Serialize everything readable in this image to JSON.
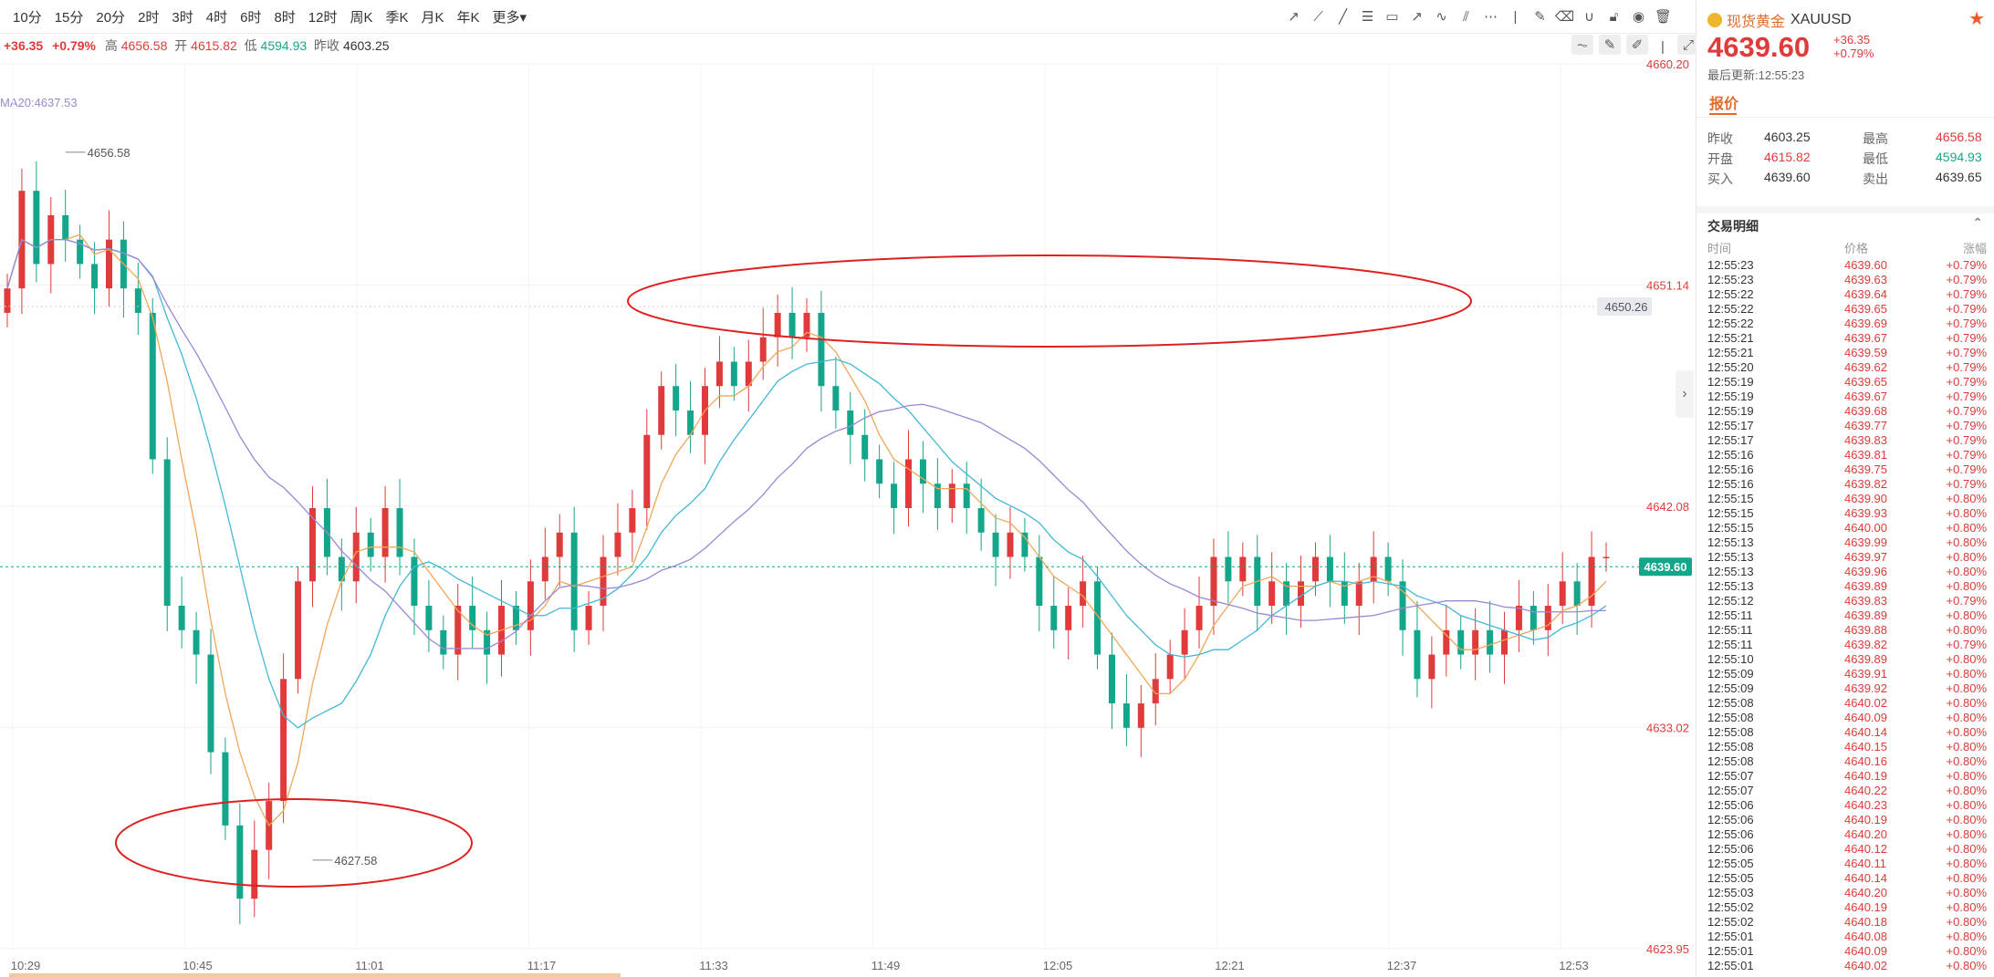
{
  "toolbar": {
    "periods": [
      "10分",
      "15分",
      "20分",
      "2时",
      "3时",
      "4时",
      "6时",
      "8时",
      "12时",
      "周K",
      "季K",
      "月K",
      "年K",
      "更多▾"
    ]
  },
  "infobar": {
    "change": "+36.35",
    "change_pct": "+0.79%",
    "high_label": "高",
    "high": "4656.58",
    "open_label": "开",
    "open": "4615.82",
    "low_label": "低",
    "low": "4594.93",
    "prev_label": "昨收",
    "prev": "4603.25"
  },
  "ma_label": "MA20:4637.53",
  "chart_data": {
    "type": "candlestick",
    "ylim": [
      4623.95,
      4660.2
    ],
    "ytick_labels": [
      "4660.20",
      "4651.14",
      "4642.08",
      "4633.02",
      "4623.95"
    ],
    "ytick_values": [
      4660.2,
      4651.14,
      4642.08,
      4633.02,
      4623.95
    ],
    "xtick_labels": [
      "10:29",
      "10:45",
      "11:01",
      "11:17",
      "11:33",
      "11:49",
      "12:05",
      "12:21",
      "12:37",
      "12:53"
    ],
    "current_price": "4639.60",
    "marker_price": "4650.26",
    "annotations": [
      {
        "text": "4656.58",
        "value": 4656.58
      },
      {
        "text": "4627.58",
        "value": 4627.58
      }
    ],
    "close": [
      4651,
      4655,
      4652,
      4654,
      4653,
      4652,
      4651,
      4653,
      4651,
      4650,
      4644,
      4638,
      4637,
      4636,
      4632,
      4629,
      4626,
      4628,
      4630,
      4635,
      4639,
      4642,
      4640,
      4639,
      4641,
      4640,
      4642,
      4640,
      4638,
      4637,
      4636,
      4638,
      4637,
      4636,
      4638,
      4637,
      4639,
      4640,
      4641,
      4637,
      4638,
      4640,
      4641,
      4642,
      4645,
      4647,
      4646,
      4645,
      4647,
      4648,
      4647,
      4648,
      4649,
      4650,
      4649,
      4650,
      4647,
      4646,
      4645,
      4644,
      4643,
      4642,
      4644,
      4643,
      4642,
      4643,
      4642,
      4641,
      4640,
      4641,
      4640,
      4638,
      4637,
      4638,
      4639,
      4636,
      4634,
      4633,
      4634,
      4635,
      4636,
      4637,
      4638,
      4640,
      4639,
      4640,
      4638,
      4639,
      4638,
      4639,
      4640,
      4639,
      4638,
      4639,
      4640,
      4639,
      4637,
      4635,
      4636,
      4637,
      4636,
      4637,
      4636,
      4637,
      4638,
      4637,
      4638,
      4639,
      4638,
      4640,
      4640
    ]
  },
  "right_panel": {
    "name": "现货黄金",
    "symbol": "XAUUSD",
    "price": "4639.60",
    "change": "+36.35",
    "change_pct": "+0.79%",
    "updated": "最后更新:12:55:23",
    "tab": "报价",
    "quote": [
      {
        "l1": "昨收",
        "v1": "4603.25",
        "c1": "#333",
        "l2": "最高",
        "v2": "4656.58",
        "c2": "#e03a3a"
      },
      {
        "l1": "开盘",
        "v1": "4615.82",
        "c1": "#e03a3a",
        "l2": "最低",
        "v2": "4594.93",
        "c2": "#14a68a"
      },
      {
        "l1": "买入",
        "v1": "4639.60",
        "c1": "#333",
        "l2": "卖出",
        "v2": "4639.65",
        "c2": "#333"
      }
    ],
    "detail_title": "交易明细",
    "headers": [
      "时间",
      "价格",
      "涨幅"
    ],
    "trades": [
      [
        "12:55:23",
        "4639.60",
        "+0.79%"
      ],
      [
        "12:55:23",
        "4639.63",
        "+0.79%"
      ],
      [
        "12:55:22",
        "4639.64",
        "+0.79%"
      ],
      [
        "12:55:22",
        "4639.65",
        "+0.79%"
      ],
      [
        "12:55:22",
        "4639.69",
        "+0.79%"
      ],
      [
        "12:55:21",
        "4639.67",
        "+0.79%"
      ],
      [
        "12:55:21",
        "4639.59",
        "+0.79%"
      ],
      [
        "12:55:20",
        "4639.62",
        "+0.79%"
      ],
      [
        "12:55:19",
        "4639.65",
        "+0.79%"
      ],
      [
        "12:55:19",
        "4639.67",
        "+0.79%"
      ],
      [
        "12:55:19",
        "4639.68",
        "+0.79%"
      ],
      [
        "12:55:17",
        "4639.77",
        "+0.79%"
      ],
      [
        "12:55:17",
        "4639.83",
        "+0.79%"
      ],
      [
        "12:55:16",
        "4639.81",
        "+0.79%"
      ],
      [
        "12:55:16",
        "4639.75",
        "+0.79%"
      ],
      [
        "12:55:16",
        "4639.82",
        "+0.79%"
      ],
      [
        "12:55:15",
        "4639.90",
        "+0.80%"
      ],
      [
        "12:55:15",
        "4639.93",
        "+0.80%"
      ],
      [
        "12:55:15",
        "4640.00",
        "+0.80%"
      ],
      [
        "12:55:13",
        "4639.99",
        "+0.80%"
      ],
      [
        "12:55:13",
        "4639.97",
        "+0.80%"
      ],
      [
        "12:55:13",
        "4639.96",
        "+0.80%"
      ],
      [
        "12:55:13",
        "4639.89",
        "+0.80%"
      ],
      [
        "12:55:12",
        "4639.83",
        "+0.79%"
      ],
      [
        "12:55:11",
        "4639.89",
        "+0.80%"
      ],
      [
        "12:55:11",
        "4639.88",
        "+0.80%"
      ],
      [
        "12:55:11",
        "4639.82",
        "+0.79%"
      ],
      [
        "12:55:10",
        "4639.89",
        "+0.80%"
      ],
      [
        "12:55:09",
        "4639.91",
        "+0.80%"
      ],
      [
        "12:55:09",
        "4639.92",
        "+0.80%"
      ],
      [
        "12:55:08",
        "4640.02",
        "+0.80%"
      ],
      [
        "12:55:08",
        "4640.09",
        "+0.80%"
      ],
      [
        "12:55:08",
        "4640.14",
        "+0.80%"
      ],
      [
        "12:55:08",
        "4640.15",
        "+0.80%"
      ],
      [
        "12:55:08",
        "4640.16",
        "+0.80%"
      ],
      [
        "12:55:07",
        "4640.19",
        "+0.80%"
      ],
      [
        "12:55:07",
        "4640.22",
        "+0.80%"
      ],
      [
        "12:55:06",
        "4640.23",
        "+0.80%"
      ],
      [
        "12:55:06",
        "4640.19",
        "+0.80%"
      ],
      [
        "12:55:06",
        "4640.20",
        "+0.80%"
      ],
      [
        "12:55:06",
        "4640.12",
        "+0.80%"
      ],
      [
        "12:55:05",
        "4640.11",
        "+0.80%"
      ],
      [
        "12:55:05",
        "4640.14",
        "+0.80%"
      ],
      [
        "12:55:03",
        "4640.20",
        "+0.80%"
      ],
      [
        "12:55:02",
        "4640.19",
        "+0.80%"
      ],
      [
        "12:55:02",
        "4640.18",
        "+0.80%"
      ],
      [
        "12:55:01",
        "4640.08",
        "+0.80%"
      ],
      [
        "12:55:01",
        "4640.09",
        "+0.80%"
      ],
      [
        "12:55:01",
        "4640.02",
        "+0.80%"
      ]
    ]
  },
  "colors": {
    "up": "#e03a3a",
    "down": "#14a68a",
    "ma5": "#f0a65a",
    "ma10": "#42b8d6",
    "ma20": "#9b86d4",
    "circle": "#e02020"
  }
}
